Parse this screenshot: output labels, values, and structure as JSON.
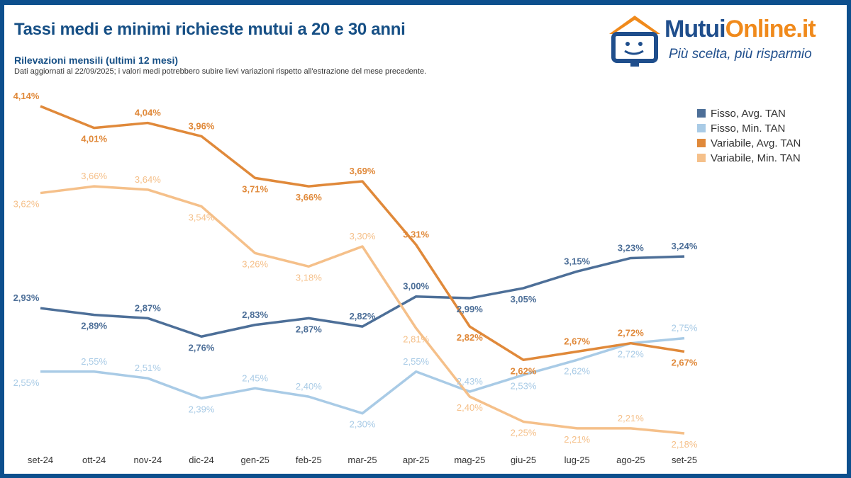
{
  "title": "Tassi medi e minimi richieste mutui a 20 e 30 anni",
  "subtitle": "Rilevazioni mensili (ultimi 12 mesi)",
  "note": "Dati aggiornati al 22/09/2025; i valori medi potrebbero subire lievi variazioni rispetto all'estrazione del mese precedente.",
  "logo": {
    "name_part1": "Mutui",
    "name_part2": "Online.it",
    "tagline": "Più scelta, più risparmio"
  },
  "chart_data": {
    "type": "line",
    "categories": [
      "set-24",
      "ott-24",
      "nov-24",
      "dic-24",
      "gen-25",
      "feb-25",
      "mar-25",
      "apr-25",
      "mag-25",
      "giu-25",
      "lug-25",
      "ago-25",
      "set-25"
    ],
    "legend_position": "top-right",
    "grid": false,
    "ylim": [
      2.1,
      4.2
    ],
    "series": [
      {
        "name": "Fisso, Avg. TAN",
        "color": "#4d6f98",
        "values": [
          2.93,
          2.89,
          2.87,
          2.76,
          2.83,
          2.87,
          2.82,
          3.0,
          2.99,
          3.05,
          3.15,
          3.23,
          3.24
        ]
      },
      {
        "name": "Fisso, Min. TAN",
        "color": "#a9cbe6",
        "values": [
          2.55,
          2.55,
          2.51,
          2.39,
          2.45,
          2.4,
          2.3,
          2.55,
          2.43,
          2.53,
          2.62,
          2.72,
          2.75
        ]
      },
      {
        "name": "Variabile, Avg. TAN",
        "color": "#e0893a",
        "values": [
          4.14,
          4.01,
          4.04,
          3.96,
          3.71,
          3.66,
          3.69,
          3.31,
          2.82,
          2.62,
          2.67,
          2.72,
          2.67
        ]
      },
      {
        "name": "Variabile, Min. TAN",
        "color": "#f5c08a",
        "values": [
          3.62,
          3.66,
          3.64,
          3.54,
          3.26,
          3.18,
          3.3,
          2.81,
          2.4,
          2.25,
          2.21,
          2.21,
          2.18
        ]
      }
    ]
  }
}
